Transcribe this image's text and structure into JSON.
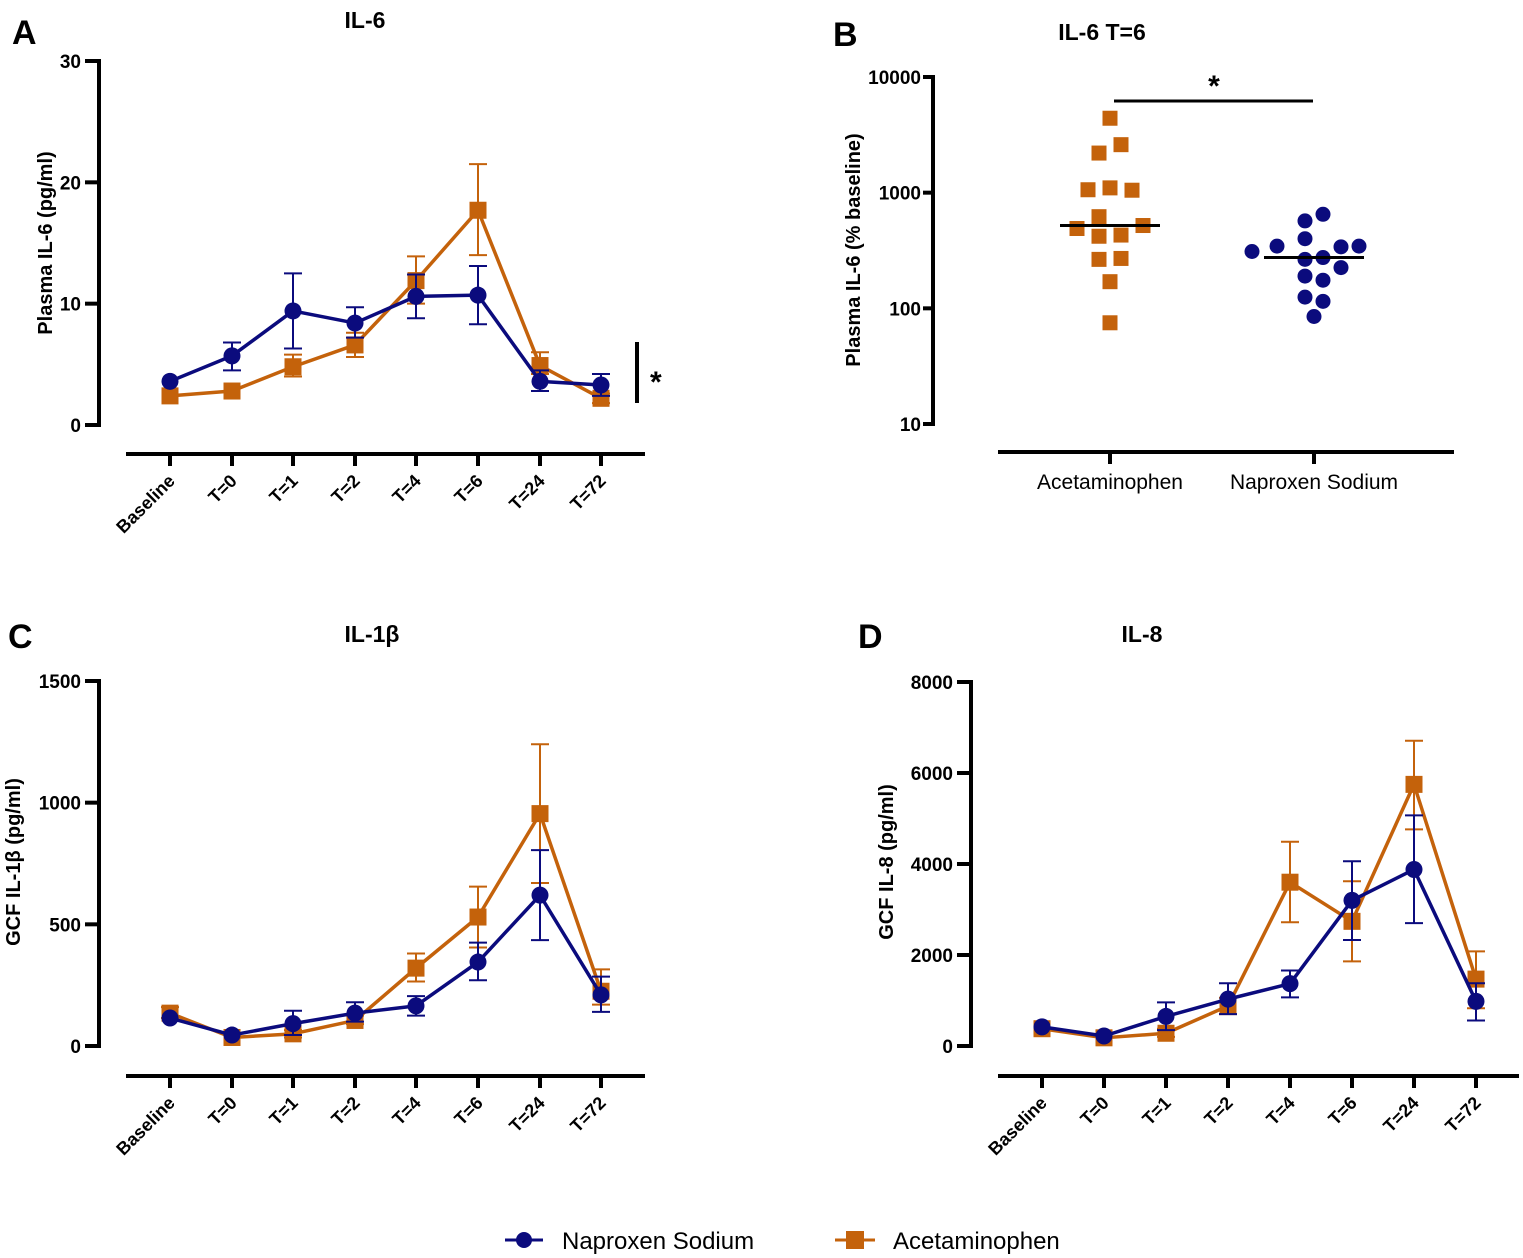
{
  "colors": {
    "naproxen": "#0b0b7d",
    "acetaminophen": "#c4620b",
    "axis": "#000000"
  },
  "legend": {
    "items": [
      {
        "name": "Naproxen Sodium",
        "marker": "circle",
        "color_key": "naproxen"
      },
      {
        "name": "Acetaminophen",
        "marker": "square",
        "color_key": "acetaminophen"
      }
    ]
  },
  "chart_data": [
    {
      "panel": "A",
      "type": "line",
      "title": "IL-6",
      "xlabel": "",
      "ylabel": "Plasma IL-6 (pg/ml)",
      "ylim": [
        0,
        30
      ],
      "yticks": [
        0,
        10,
        20,
        30
      ],
      "categories": [
        "Baseline",
        "T=0",
        "T=1",
        "T=2",
        "T=4",
        "T=6",
        "T=24",
        "T=72"
      ],
      "significance": {
        "type": "vertical-bar",
        "label": "*"
      },
      "series": [
        {
          "name": "Naproxen Sodium",
          "marker": "circle",
          "values": [
            3.6,
            5.7,
            9.4,
            8.4,
            10.6,
            10.7,
            3.6,
            3.3
          ],
          "err_low": [
            3.6,
            4.5,
            6.3,
            7.2,
            8.8,
            8.3,
            2.8,
            2.4
          ],
          "err_high": [
            3.6,
            6.8,
            12.5,
            9.7,
            12.4,
            13.1,
            4.5,
            4.2
          ]
        },
        {
          "name": "Acetaminophen",
          "marker": "square",
          "values": [
            2.4,
            2.8,
            4.8,
            6.6,
            11.9,
            17.7,
            4.9,
            2.2
          ],
          "err_low": [
            2.4,
            2.8,
            4.0,
            5.6,
            10.0,
            14.0,
            4.2,
            1.8
          ],
          "err_high": [
            2.4,
            2.8,
            5.8,
            7.6,
            13.9,
            21.5,
            6.0,
            2.6
          ]
        }
      ]
    },
    {
      "panel": "B",
      "type": "scatter",
      "title": "IL-6 T=6",
      "xlabel": "",
      "ylabel": "Plasma IL-6 (% baseline)",
      "yscale": "log",
      "ylim": [
        10,
        10000
      ],
      "yticks": [
        10,
        100,
        1000,
        10000
      ],
      "categories": [
        "Acetaminophen",
        "Naproxen Sodium"
      ],
      "significance": {
        "type": "horizontal-bar",
        "label": "*",
        "between": [
          "Acetaminophen",
          "Naproxen Sodium"
        ]
      },
      "series": [
        {
          "name": "Acetaminophen",
          "marker": "square",
          "median": 520,
          "values": [
            4400,
            2600,
            2200,
            1060,
            1100,
            1050,
            620,
            490,
            520,
            420,
            430,
            265,
            270,
            170,
            75
          ]
        },
        {
          "name": "Naproxen Sodium",
          "marker": "circle",
          "median": 275,
          "values": [
            650,
            570,
            400,
            310,
            345,
            340,
            345,
            265,
            275,
            225,
            190,
            175,
            125,
            115,
            85
          ]
        }
      ]
    },
    {
      "panel": "C",
      "type": "line",
      "title": "IL-1β",
      "xlabel": "",
      "ylabel": "GCF IL-1β (pg/ml)",
      "ylim": [
        0,
        1500
      ],
      "yticks": [
        0,
        500,
        1000,
        1500
      ],
      "categories": [
        "Baseline",
        "T=0",
        "T=1",
        "T=2",
        "T=4",
        "T=6",
        "T=24",
        "T=72"
      ],
      "series": [
        {
          "name": "Naproxen Sodium",
          "marker": "circle",
          "values": [
            115,
            45,
            92,
            135,
            165,
            345,
            620,
            210
          ],
          "err_low": [
            115,
            45,
            45,
            100,
            125,
            270,
            435,
            140
          ],
          "err_high": [
            115,
            45,
            145,
            180,
            205,
            425,
            805,
            285
          ]
        },
        {
          "name": "Acetaminophen",
          "marker": "square",
          "values": [
            135,
            35,
            50,
            105,
            320,
            530,
            955,
            225
          ],
          "err_low": [
            115,
            35,
            35,
            90,
            265,
            405,
            670,
            170
          ],
          "err_high": [
            160,
            35,
            65,
            125,
            380,
            655,
            1240,
            315
          ]
        }
      ]
    },
    {
      "panel": "D",
      "type": "line",
      "title": "IL-8",
      "xlabel": "",
      "ylabel": "GCF IL-8 (pg/ml)",
      "ylim": [
        0,
        8000
      ],
      "yticks": [
        0,
        2000,
        4000,
        6000,
        8000
      ],
      "categories": [
        "Baseline",
        "T=0",
        "T=1",
        "T=2",
        "T=4",
        "T=6",
        "T=24",
        "T=72"
      ],
      "series": [
        {
          "name": "Naproxen Sodium",
          "marker": "circle",
          "values": [
            420,
            220,
            650,
            1030,
            1370,
            3200,
            3880,
            980
          ],
          "err_low": [
            420,
            220,
            350,
            700,
            1070,
            2330,
            2700,
            560
          ],
          "err_high": [
            420,
            220,
            960,
            1380,
            1660,
            4060,
            5070,
            1380
          ]
        },
        {
          "name": "Acetaminophen",
          "marker": "square",
          "values": [
            380,
            180,
            280,
            880,
            3600,
            2740,
            5750,
            1470
          ],
          "err_low": [
            380,
            180,
            200,
            700,
            2720,
            1860,
            4760,
            830
          ],
          "err_high": [
            380,
            180,
            380,
            1060,
            4490,
            3620,
            6710,
            2080
          ]
        }
      ]
    }
  ]
}
